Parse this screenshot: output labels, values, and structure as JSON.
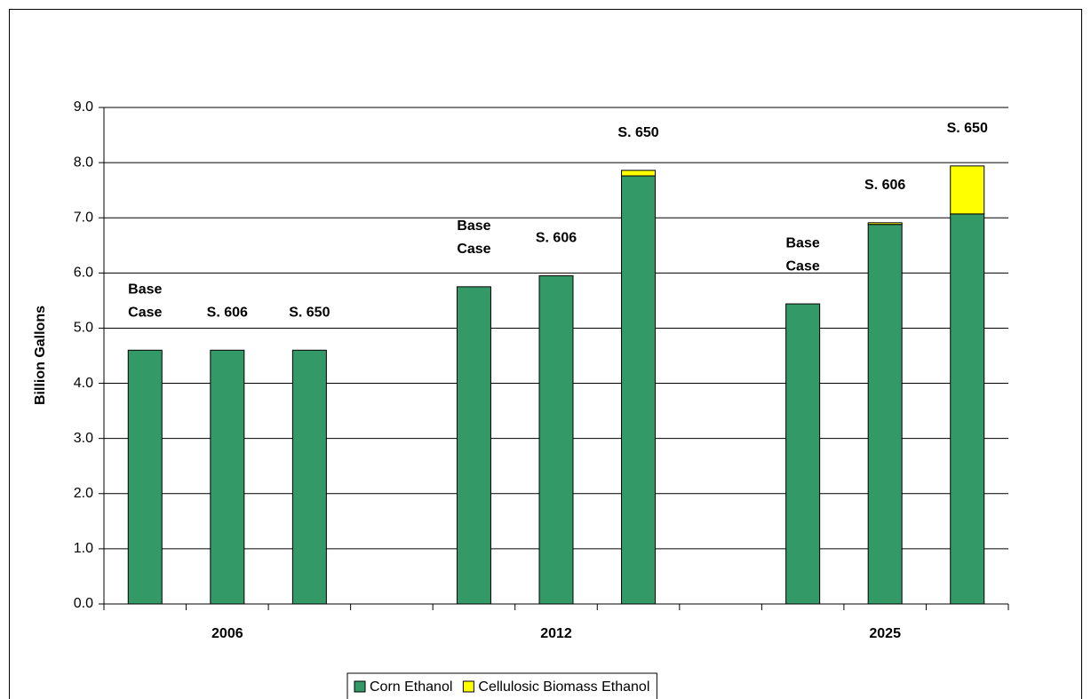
{
  "chart_data": {
    "type": "bar",
    "stacked": true,
    "y_label": "Billion Gallons",
    "categories": [
      null,
      "2006",
      null,
      null,
      null,
      "2012",
      null,
      null,
      null,
      "2025",
      null
    ],
    "bar_labels": [
      [
        "Base",
        "Case"
      ],
      [
        "S. 606"
      ],
      [
        "S. 650"
      ],
      null,
      [
        "Base",
        "Case"
      ],
      [
        "S. 606"
      ],
      [
        "S. 650"
      ],
      null,
      [
        "Base",
        "Case"
      ],
      [
        "S. 606"
      ],
      [
        "S. 650"
      ]
    ],
    "series": [
      {
        "name": "Corn Ethanol",
        "color": "#339966",
        "values": [
          4.6,
          4.6,
          4.6,
          null,
          5.75,
          5.95,
          7.76,
          null,
          5.44,
          6.88,
          7.07
        ]
      },
      {
        "name": "Cellulosic Biomass Ethanol",
        "color": "#ffff00",
        "values": [
          null,
          null,
          null,
          null,
          null,
          null,
          0.1,
          null,
          null,
          0.03,
          0.87
        ]
      }
    ],
    "ylim": [
      0,
      9
    ],
    "yticks": [
      {
        "value": 0,
        "label": "0.0"
      },
      {
        "value": 1,
        "label": "1.0"
      },
      {
        "value": 2,
        "label": "2.0"
      },
      {
        "value": 3,
        "label": "3.0"
      },
      {
        "value": 4,
        "label": "4.0"
      },
      {
        "value": 5,
        "label": "5.0"
      },
      {
        "value": 6,
        "label": "6.0"
      },
      {
        "value": 7,
        "label": "7.0"
      },
      {
        "value": 8,
        "label": "8.0"
      },
      {
        "value": 9,
        "label": "9.0"
      }
    ],
    "grid": true
  }
}
